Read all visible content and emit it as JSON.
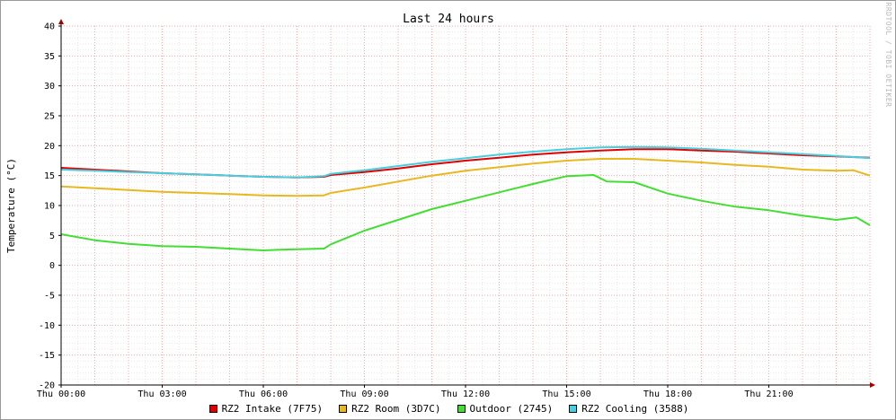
{
  "chart_data": {
    "type": "line",
    "title": "Last 24 hours",
    "ylabel": "Temperature (°C)",
    "xlabel": "",
    "watermark": "RRDTOOL / TOBI OETIKER",
    "ylim": [
      -20,
      40
    ],
    "xlim": [
      0,
      24
    ],
    "y_ticks": [
      -20,
      -15,
      -10,
      -5,
      0,
      5,
      10,
      15,
      20,
      25,
      30,
      35,
      40
    ],
    "x_ticks": [
      {
        "x": 0,
        "label": "Thu 00:00"
      },
      {
        "x": 3,
        "label": "Thu 03:00"
      },
      {
        "x": 6,
        "label": "Thu 06:00"
      },
      {
        "x": 9,
        "label": "Thu 09:00"
      },
      {
        "x": 12,
        "label": "Thu 12:00"
      },
      {
        "x": 15,
        "label": "Thu 15:00"
      },
      {
        "x": 18,
        "label": "Thu 18:00"
      },
      {
        "x": 21,
        "label": "Thu 21:00"
      }
    ],
    "grid": true,
    "legend_position": "bottom",
    "series": [
      {
        "name": "RZ2 Intake (7F75)",
        "color": "#e00000",
        "x": [
          0,
          1,
          2,
          3,
          4,
          5,
          6,
          7,
          7.8,
          8,
          9,
          10,
          11,
          12,
          13,
          14,
          15,
          16,
          17,
          18,
          19,
          20,
          21,
          22,
          23,
          24
        ],
        "y": [
          16.3,
          16.0,
          15.7,
          15.4,
          15.2,
          15.0,
          14.8,
          14.7,
          14.8,
          15.1,
          15.6,
          16.2,
          16.9,
          17.5,
          18.0,
          18.5,
          18.9,
          19.2,
          19.4,
          19.4,
          19.2,
          19.0,
          18.7,
          18.4,
          18.2,
          18.0
        ]
      },
      {
        "name": "RZ2 Room (3D7C)",
        "color": "#e8b820",
        "x": [
          0,
          1,
          2,
          3,
          4,
          5,
          6,
          7,
          7.8,
          8,
          9,
          10,
          11,
          12,
          13,
          14,
          15,
          16,
          17,
          18,
          19,
          20,
          21,
          22,
          23,
          23.5,
          24
        ],
        "y": [
          13.2,
          12.9,
          12.6,
          12.3,
          12.1,
          11.9,
          11.7,
          11.6,
          11.7,
          12.1,
          13.0,
          14.0,
          15.0,
          15.8,
          16.4,
          17.0,
          17.5,
          17.8,
          17.8,
          17.5,
          17.2,
          16.8,
          16.5,
          16.0,
          15.8,
          15.9,
          15.0
        ]
      },
      {
        "name": "Outdoor (2745)",
        "color": "#44dd33",
        "x": [
          0,
          1,
          2,
          3,
          4,
          5,
          6,
          6.5,
          7,
          7.8,
          8,
          9,
          10,
          11,
          12,
          13,
          14,
          15,
          15.8,
          16.2,
          17,
          18,
          19,
          20,
          21,
          22,
          23,
          23.6,
          24
        ],
        "y": [
          5.2,
          4.2,
          3.6,
          3.2,
          3.1,
          2.8,
          2.5,
          2.6,
          2.7,
          2.8,
          3.5,
          5.8,
          7.6,
          9.4,
          10.8,
          12.2,
          13.6,
          14.9,
          15.1,
          14.0,
          13.9,
          12.0,
          10.8,
          9.8,
          9.2,
          8.3,
          7.6,
          8.0,
          6.7
        ]
      },
      {
        "name": "RZ2 Cooling (3588)",
        "color": "#44d0e0",
        "x": [
          0,
          1,
          2,
          3,
          4,
          5,
          6,
          7,
          7.8,
          8,
          9,
          10,
          11,
          12,
          13,
          14,
          15,
          16,
          17,
          18,
          19,
          20,
          21,
          22,
          23,
          24
        ],
        "y": [
          16.0,
          15.8,
          15.6,
          15.4,
          15.2,
          15.0,
          14.8,
          14.7,
          14.9,
          15.3,
          15.9,
          16.6,
          17.3,
          17.9,
          18.5,
          19.0,
          19.4,
          19.7,
          19.8,
          19.7,
          19.5,
          19.2,
          18.9,
          18.6,
          18.3,
          17.9
        ]
      }
    ]
  }
}
